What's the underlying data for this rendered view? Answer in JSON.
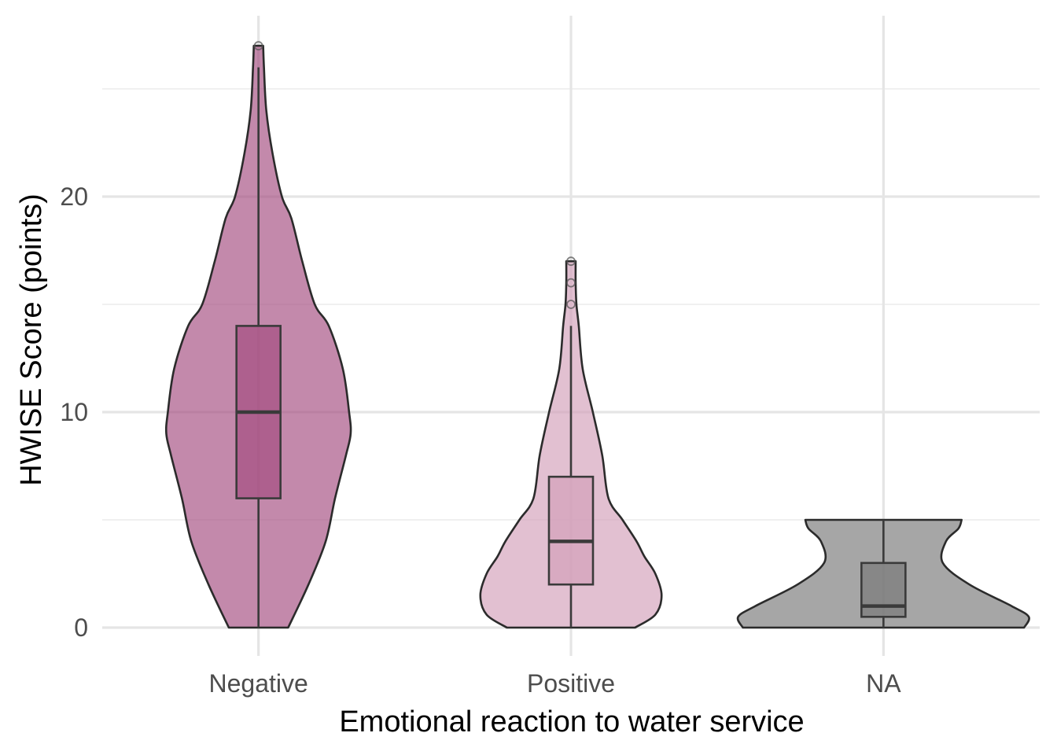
{
  "chart_data": {
    "type": "violin",
    "title": "",
    "xlabel": "Emotional reaction to water service",
    "ylabel": "HWISE Score (points)",
    "ylim": [
      -1.3,
      28.0
    ],
    "yticks": [
      0,
      10,
      20
    ],
    "grid": true,
    "legend": "none",
    "categories": [
      "Negative",
      "Positive",
      "NA"
    ],
    "series": [
      {
        "category": "Negative",
        "fill": "#a34a7e",
        "fill_opacity": 0.65,
        "box_fill": "#a34a7e",
        "box": {
          "q1": 6,
          "median": 10,
          "q3": 14,
          "whisker_low": 0,
          "whisker_high": 26
        },
        "outliers": [
          27
        ],
        "density": [
          [
            0,
            0.19
          ],
          [
            2,
            0.32
          ],
          [
            4,
            0.43
          ],
          [
            6,
            0.49
          ],
          [
            8,
            0.56
          ],
          [
            9,
            0.59
          ],
          [
            10,
            0.58
          ],
          [
            12,
            0.54
          ],
          [
            14,
            0.45
          ],
          [
            15,
            0.36
          ],
          [
            17,
            0.28
          ],
          [
            19,
            0.21
          ],
          [
            20,
            0.15
          ],
          [
            22,
            0.09
          ],
          [
            24,
            0.05
          ],
          [
            26,
            0.035
          ],
          [
            27,
            0.03
          ]
        ]
      },
      {
        "category": "Positive",
        "fill": "#d39eb9",
        "fill_opacity": 0.65,
        "box_fill": "#d39eb9",
        "box": {
          "q1": 2,
          "median": 4,
          "q3": 7,
          "whisker_low": 0,
          "whisker_high": 14
        },
        "outliers": [
          15,
          16,
          17
        ],
        "density": [
          [
            0,
            0.41
          ],
          [
            0.6,
            0.54
          ],
          [
            1.5,
            0.58
          ],
          [
            2.5,
            0.54
          ],
          [
            3.3,
            0.47
          ],
          [
            4,
            0.42
          ],
          [
            5,
            0.33
          ],
          [
            6,
            0.24
          ],
          [
            8,
            0.2
          ],
          [
            10,
            0.14
          ],
          [
            12,
            0.075
          ],
          [
            14,
            0.05
          ],
          [
            15,
            0.035
          ],
          [
            16,
            0.03
          ],
          [
            17,
            0.03
          ]
        ]
      },
      {
        "category": "NA",
        "fill": "#777777",
        "fill_opacity": 0.65,
        "box_fill": "#777777",
        "box": {
          "q1": 0.5,
          "median": 1,
          "q3": 3,
          "whisker_low": 0,
          "whisker_high": 5
        },
        "outliers": [],
        "density": [
          [
            0,
            0.9
          ],
          [
            0.5,
            0.93
          ],
          [
            1,
            0.82
          ],
          [
            2,
            0.55
          ],
          [
            3,
            0.38
          ],
          [
            4,
            0.4
          ],
          [
            4.6,
            0.48
          ],
          [
            5,
            0.5
          ]
        ]
      }
    ]
  }
}
